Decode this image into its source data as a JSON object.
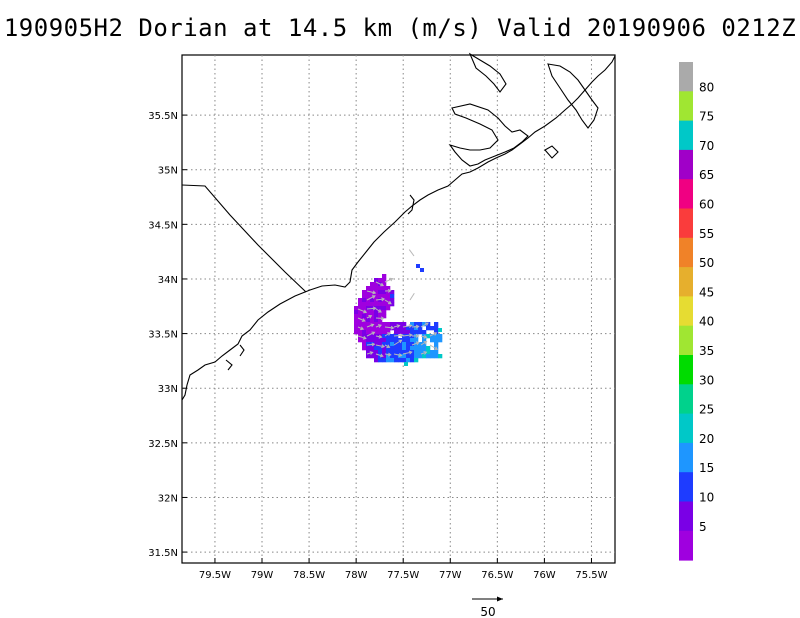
{
  "title": "190905H2 Dorian at 14.5 km (m/s) Valid 20190906 0212Z",
  "lat_labels": [
    "35.5N",
    "35N",
    "34.5N",
    "34N",
    "33.5N",
    "33N",
    "32.5N",
    "32N",
    "31.5N"
  ],
  "lat_values": [
    35.5,
    35,
    34.5,
    34,
    33.5,
    33,
    32.5,
    32,
    31.5
  ],
  "lon_labels": [
    "79.5W",
    "79W",
    "78.5W",
    "78W",
    "77.5W",
    "77W",
    "76.5W",
    "76W",
    "75.5W"
  ],
  "lon_values": [
    -79.5,
    -79,
    -78.5,
    -78,
    -77.5,
    -77,
    -76.5,
    -76,
    -75.5
  ],
  "map_extent": {
    "lon_min": -79.85,
    "lon_max": -75.25,
    "lat_min": 31.4,
    "lat_max": 36.05
  },
  "colorbar": {
    "labels": [
      "5",
      "10",
      "15",
      "20",
      "25",
      "30",
      "35",
      "40",
      "45",
      "50",
      "55",
      "60",
      "65",
      "70",
      "75",
      "80"
    ],
    "colors": [
      "#9f00df",
      "#7a00e6",
      "#1e3cff",
      "#1e96ff",
      "#00c8c8",
      "#00d28c",
      "#00dc00",
      "#a0e632",
      "#e6dc32",
      "#e6af2d",
      "#f08228",
      "#fa3c3c",
      "#f00082",
      "#a000c8",
      "#00c8c8",
      "#a0e632",
      "#aaaaaa"
    ]
  },
  "reference_vector": {
    "label": "50"
  },
  "chart_data": {
    "type": "heatmap",
    "title": "190905H2 Dorian at 14.5 km (m/s) Valid 20190906 0212Z",
    "variable": "wind speed (m/s) with wind vectors",
    "contour_levels": [
      5,
      10,
      15,
      20,
      25,
      30,
      35,
      40,
      45,
      50,
      55,
      60,
      65,
      70,
      75,
      80
    ],
    "xlim": [
      "79.85W",
      "75.25W"
    ],
    "ylim": [
      "31.4N",
      "36.05N"
    ],
    "grid": true,
    "observed_region": {
      "center": [
        "77.6W",
        "33.6N"
      ],
      "dominant_speed_range_ms": [
        0,
        20
      ],
      "max_speed_ms": 25
    }
  }
}
